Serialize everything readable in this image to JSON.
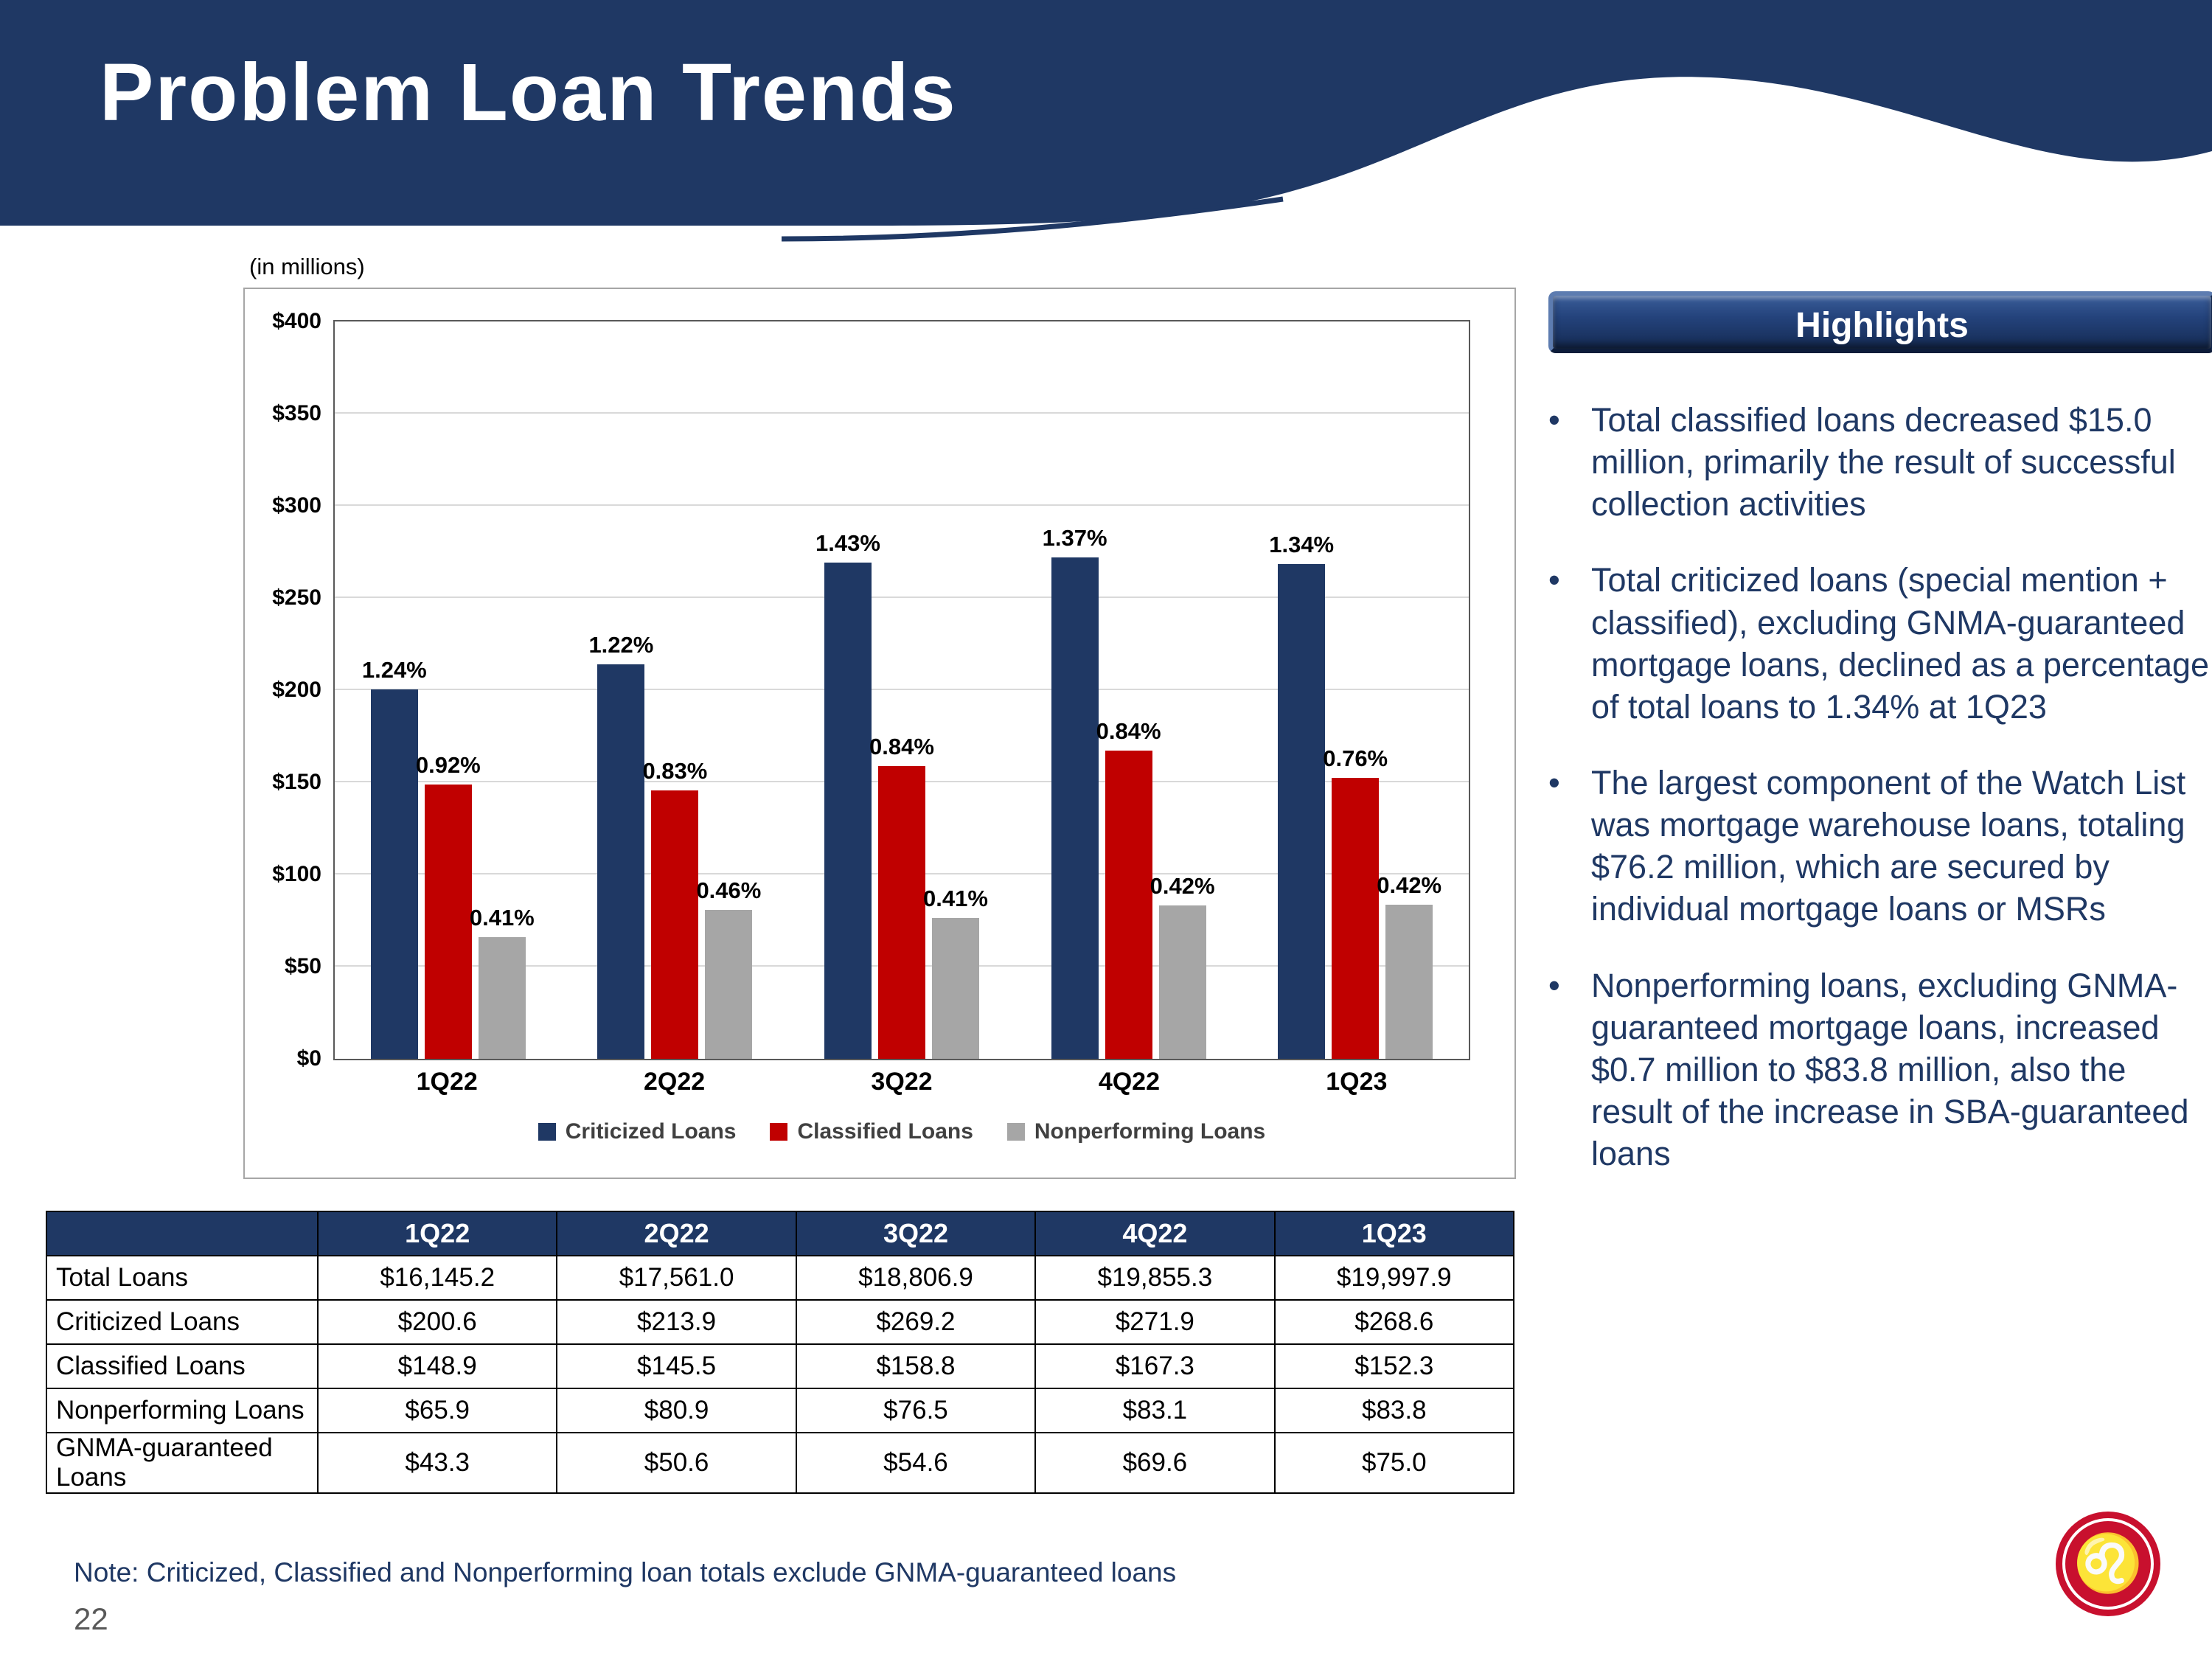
{
  "header": {
    "title": "Problem Loan Trends"
  },
  "chart_caption": "(in millions)",
  "chart_data": {
    "type": "bar",
    "title": "(in millions)",
    "categories": [
      "1Q22",
      "2Q22",
      "3Q22",
      "4Q22",
      "1Q23"
    ],
    "series": [
      {
        "name": "Criticized Loans",
        "color": "#1F3864",
        "values": [
          200.6,
          213.9,
          269.2,
          271.9,
          268.6
        ],
        "labels": [
          "1.24%",
          "1.22%",
          "1.43%",
          "1.37%",
          "1.34%"
        ]
      },
      {
        "name": "Classified Loans",
        "color": "#C00000",
        "values": [
          148.9,
          145.5,
          158.8,
          167.3,
          152.3
        ],
        "labels": [
          "0.92%",
          "0.83%",
          "0.84%",
          "0.84%",
          "0.76%"
        ]
      },
      {
        "name": "Nonperforming Loans",
        "color": "#A6A6A6",
        "values": [
          65.9,
          80.9,
          76.5,
          83.1,
          83.8
        ],
        "labels": [
          "0.41%",
          "0.46%",
          "0.41%",
          "0.42%",
          "0.42%"
        ]
      }
    ],
    "ylim": [
      0,
      400
    ],
    "ytick_step": 50,
    "ytick_format": "$",
    "grid": true,
    "legend_position": "bottom"
  },
  "table": {
    "headers": [
      "",
      "1Q22",
      "2Q22",
      "3Q22",
      "4Q22",
      "1Q23"
    ],
    "rows": [
      [
        "Total Loans",
        "$16,145.2",
        "$17,561.0",
        "$18,806.9",
        "$19,855.3",
        "$19,997.9"
      ],
      [
        "Criticized Loans",
        "$200.6",
        "$213.9",
        "$269.2",
        "$271.9",
        "$268.6"
      ],
      [
        "Classified Loans",
        "$148.9",
        "$145.5",
        "$158.8",
        "$167.3",
        "$152.3"
      ],
      [
        "Nonperforming Loans",
        "$65.9",
        "$80.9",
        "$76.5",
        "$83.1",
        "$83.8"
      ],
      [
        "GNMA-guaranteed Loans",
        "$43.3",
        "$50.6",
        "$54.6",
        "$69.6",
        "$75.0"
      ]
    ]
  },
  "highlights": {
    "title": "Highlights",
    "bullets": [
      "Total classified loans decreased $15.0 million, primarily the result of successful collection activities",
      "Total criticized loans (special mention + classified), excluding GNMA-guaranteed mortgage loans, declined as a percentage of total loans to 1.34% at 1Q23",
      "The largest component of the Watch List was mortgage warehouse loans, totaling $76.2 million, which are secured by individual mortgage loans or MSRs",
      "Nonperforming loans, excluding GNMA-guaranteed mortgage loans, increased $0.7 million to $83.8 million, also the result of the increase in SBA-guaranteed loans"
    ]
  },
  "footer": {
    "note": "Note: Criticized, Classified and Nonperforming loan totals exclude GNMA-guaranteed loans",
    "page_number": "22"
  },
  "colors": {
    "navy": "#1F3864",
    "red": "#C00000",
    "gray": "#A6A6A6",
    "logo_red": "#C8102E"
  },
  "logo": {
    "glyph": "♌"
  }
}
